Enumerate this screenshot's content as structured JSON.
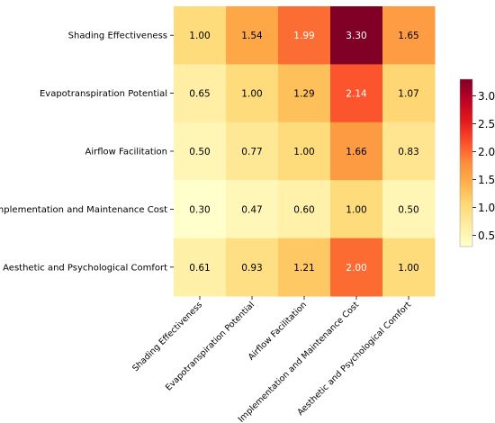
{
  "chart_data": {
    "type": "heatmap",
    "rows": [
      "Shading Effectiveness",
      "Evapotranspiration Potential",
      "Airflow Facilitation",
      "Implementation and Maintenance Cost",
      "Aesthetic and Psychological Comfort"
    ],
    "columns": [
      "Shading Effectiveness",
      "Evapotranspiration Potential",
      "Airflow Facilitation",
      "Implementation and Maintenance Cost",
      "Aesthetic and Psychological Comfort"
    ],
    "values": [
      [
        1.0,
        1.54,
        1.99,
        3.3,
        1.65
      ],
      [
        0.65,
        1.0,
        1.29,
        2.14,
        1.07
      ],
      [
        0.5,
        0.77,
        1.0,
        1.66,
        0.83
      ],
      [
        0.3,
        0.47,
        0.6,
        1.0,
        0.5
      ],
      [
        0.61,
        0.93,
        1.21,
        2.0,
        1.0
      ]
    ],
    "value_labels": [
      [
        "1.00",
        "1.54",
        "1.99",
        "3.30",
        "1.65"
      ],
      [
        "0.65",
        "1.00",
        "1.29",
        "2.14",
        "1.07"
      ],
      [
        "0.50",
        "0.77",
        "1.00",
        "1.66",
        "0.83"
      ],
      [
        "0.30",
        "0.47",
        "0.60",
        "1.00",
        "0.50"
      ],
      [
        "0.61",
        "0.93",
        "1.21",
        "2.00",
        "1.00"
      ]
    ],
    "colormap": "YlOrRd",
    "color_range": [
      0.3,
      3.3
    ],
    "colorbar": {
      "ticks": [
        0.5,
        1.0,
        1.5,
        2.0,
        2.5,
        3.0
      ],
      "tick_labels": [
        "0.5",
        "1.0",
        "1.5",
        "2.0",
        "2.5",
        "3.0"
      ],
      "placement": "right"
    },
    "title": "",
    "xlabel": "",
    "ylabel": "",
    "grid": false,
    "colors": {
      "text": "#000000",
      "cell_text_on_light": "#000000",
      "cell_text_on_dark": "#ffffff"
    }
  }
}
